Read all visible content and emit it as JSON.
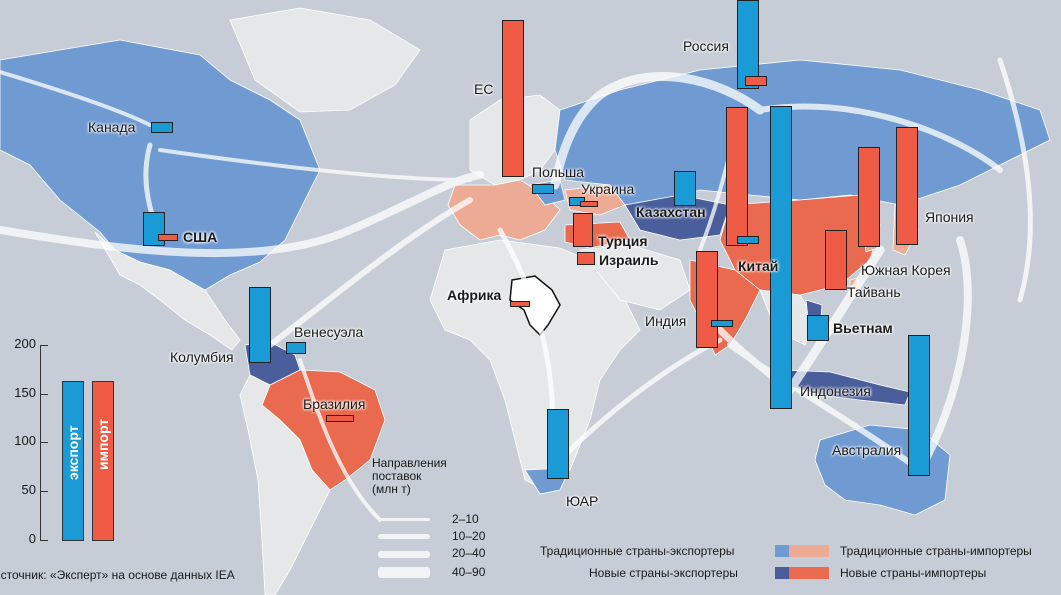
{
  "title": "",
  "colors": {
    "ocean": "#c6cdd6",
    "neutral_land": "#e6e7e9",
    "traditional_exporter": "#6f9bd2",
    "new_exporter": "#4a5e9c",
    "traditional_importer": "#edaa94",
    "new_importer": "#ea6a4f",
    "export_bar": "#1a9bd6",
    "import_bar": "#ef5b45",
    "flow_arrow": "#ffffff"
  },
  "countries": [
    {
      "name": "Канада",
      "category": "traditional_exporter",
      "export": 3,
      "import": 0
    },
    {
      "name": "США",
      "category": "traditional_exporter",
      "export": 20,
      "import": 3
    },
    {
      "name": "Колумбия",
      "category": "new_exporter",
      "export": 75,
      "import": 0
    },
    {
      "name": "Венесуэла",
      "category": "new_exporter",
      "export": 8,
      "import": 0
    },
    {
      "name": "Бразилия",
      "category": "new_importer",
      "export": 0,
      "import": 3
    },
    {
      "name": "ЕС",
      "category": "traditional_importer",
      "export": 0,
      "import": 160
    },
    {
      "name": "Польша",
      "category": "traditional_exporter",
      "export": 6,
      "import": 0
    },
    {
      "name": "Украина",
      "category": "traditional_importer",
      "export": 3,
      "import": 2
    },
    {
      "name": "Россия",
      "category": "traditional_exporter",
      "export": 100,
      "import": 7
    },
    {
      "name": "Казахстан",
      "category": "new_exporter",
      "export": 30,
      "import": 0
    },
    {
      "name": "Турция",
      "category": "new_importer",
      "export": 0,
      "import": 25
    },
    {
      "name": "Израиль",
      "category": "new_importer",
      "export": 0,
      "import": 10
    },
    {
      "name": "Африка",
      "category": "other",
      "export": 0,
      "import": 2
    },
    {
      "name": "ЮАР",
      "category": "traditional_exporter",
      "export": 70,
      "import": 0
    },
    {
      "name": "Индия",
      "category": "new_importer",
      "export": 5,
      "import": 80
    },
    {
      "name": "Китай",
      "category": "new_importer",
      "export": 6,
      "import": 135
    },
    {
      "name": "Вьетнам",
      "category": "new_exporter",
      "export": 20,
      "import": 0
    },
    {
      "name": "Индонезия",
      "category": "new_exporter",
      "export": 300,
      "import": 0
    },
    {
      "name": "Австралия",
      "category": "traditional_exporter",
      "export": 140,
      "import": 0
    },
    {
      "name": "Южная Корея",
      "category": "traditional_importer",
      "export": 0,
      "import": 90
    },
    {
      "name": "Тайвань",
      "category": "traditional_importer",
      "export": 0,
      "import": 55
    },
    {
      "name": "Япония",
      "category": "traditional_importer",
      "export": 0,
      "import": 120
    }
  ],
  "scale": {
    "ticks": [
      "200",
      "150",
      "100",
      "50",
      "0"
    ],
    "export_label": "экспорт",
    "import_label": "импорт"
  },
  "flows": {
    "title": "Направления\nпоставок\n(млн т)",
    "items": [
      "2–10",
      "10–20",
      "20–40",
      "40–90"
    ]
  },
  "legend": {
    "traditional_exporters": "Традиционные страны-экспортеры",
    "new_exporters": "Новые страны-экспортеры",
    "traditional_importers": "Традиционные страны-импортеры",
    "new_importers": "Новые страны-импортеры"
  },
  "source": "Источник: «Эксперт» на основе данных IEA"
}
